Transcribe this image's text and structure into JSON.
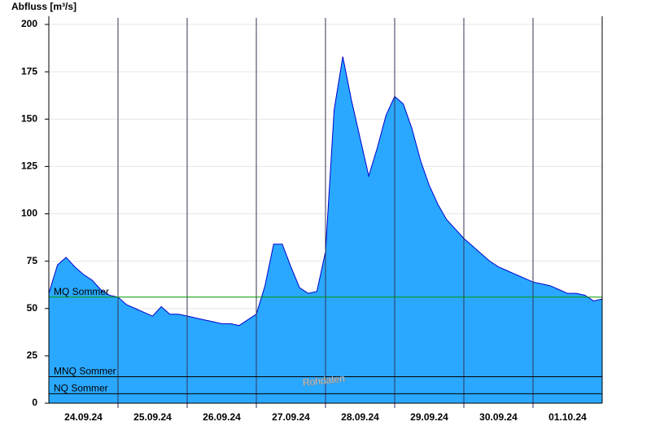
{
  "chart_data": {
    "type": "area",
    "title": "Abfluss [m³/s]",
    "x": [
      0,
      0.125,
      0.25,
      0.375,
      0.5,
      0.625,
      0.75,
      0.875,
      1,
      1.125,
      1.25,
      1.375,
      1.5,
      1.625,
      1.75,
      1.875,
      2,
      2.125,
      2.25,
      2.375,
      2.5,
      2.625,
      2.75,
      2.875,
      3,
      3.125,
      3.25,
      3.375,
      3.5,
      3.625,
      3.75,
      3.875,
      4,
      4.125,
      4.25,
      4.375,
      4.5,
      4.625,
      4.75,
      4.875,
      5,
      5.125,
      5.25,
      5.375,
      5.5,
      5.625,
      5.75,
      5.875,
      6,
      6.125,
      6.25,
      6.375,
      6.5,
      6.625,
      6.75,
      6.875,
      7,
      7.125,
      7.25,
      7.375,
      7.5,
      7.625,
      7.75,
      7.875,
      8
    ],
    "values": [
      58,
      73,
      77,
      72,
      68,
      65,
      60,
      57,
      56,
      52,
      50,
      48,
      46,
      51,
      47,
      47,
      46,
      45,
      44,
      43,
      42,
      42,
      41,
      44,
      47,
      62,
      84,
      84,
      72,
      61,
      58,
      59,
      80,
      155,
      183,
      160,
      140,
      120,
      135,
      152,
      162,
      158,
      145,
      128,
      115,
      105,
      97,
      92,
      87,
      83,
      79,
      75,
      72,
      70,
      68,
      66,
      64,
      63,
      62,
      60,
      58,
      58,
      57,
      54,
      55
    ],
    "color": "#2aa8ff",
    "line_color": "#0000cc",
    "xlim": [
      0,
      8
    ],
    "xticks": [
      {
        "value": 0.5,
        "label": "24.09.24"
      },
      {
        "value": 1.5,
        "label": "25.09.24"
      },
      {
        "value": 2.5,
        "label": "26.09.24"
      },
      {
        "value": 3.5,
        "label": "27.09.24"
      },
      {
        "value": 4.5,
        "label": "28.09.24"
      },
      {
        "value": 5.5,
        "label": "29.09.24"
      },
      {
        "value": 6.5,
        "label": "30.09.24"
      },
      {
        "value": 7.5,
        "label": "01.10.24"
      }
    ],
    "ylim": [
      0,
      200
    ],
    "yticks": [
      0,
      25,
      50,
      75,
      100,
      125,
      150,
      175,
      200
    ],
    "grid": true,
    "reference_lines": [
      {
        "name": "MQ Sommer",
        "value": 56,
        "color": "#009900"
      },
      {
        "name": "MNQ Sommer",
        "value": 14,
        "color": "#000000"
      },
      {
        "name": "NQ Sommer",
        "value": 5,
        "color": "#000000"
      }
    ],
    "annotation": "Rohdaten"
  }
}
